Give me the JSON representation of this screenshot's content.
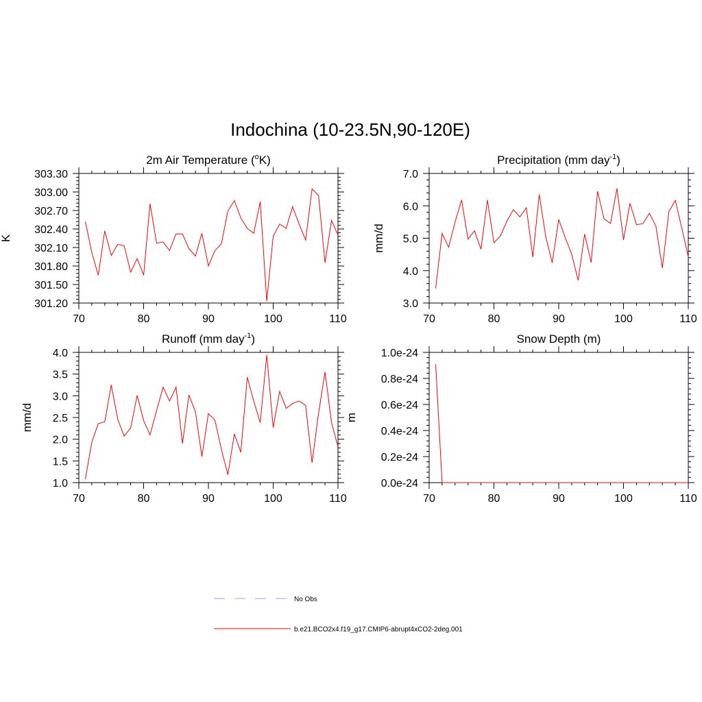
{
  "figure": {
    "title": "Indochina (10-23.5N,90-120E)"
  },
  "legend": {
    "entries": [
      {
        "label": "No Obs",
        "color": "#9999ff",
        "style": "dashed"
      },
      {
        "label": "b.e21.BCO2x4.f19_g17.CMIP6-abrupt4xCO2-2deg.001",
        "color": "#ff0000",
        "style": "solid"
      }
    ]
  },
  "chart_data": [
    {
      "type": "line",
      "title": "2m Air Temperature (°K)",
      "title_base": "2m Air Temperature (",
      "title_sup": "o",
      "title_tail": "K)",
      "ylabel": "K",
      "xlim": [
        70,
        110
      ],
      "ylim": [
        301.2,
        303.3
      ],
      "xticks": [
        70,
        80,
        90,
        100,
        110
      ],
      "yticks": [
        301.2,
        301.5,
        301.8,
        302.1,
        302.4,
        302.7,
        303.0,
        303.3
      ],
      "ytick_labels": [
        "301.20",
        "301.50",
        "301.80",
        "302.10",
        "302.40",
        "302.70",
        "303.00",
        "303.30"
      ],
      "series": [
        {
          "color": "#ff0000",
          "x": [
            71,
            72,
            73,
            74,
            75,
            76,
            77,
            78,
            79,
            80,
            81,
            82,
            83,
            84,
            85,
            86,
            87,
            88,
            89,
            90,
            91,
            92,
            93,
            94,
            95,
            96,
            97,
            98,
            99,
            100,
            101,
            102,
            103,
            104,
            105,
            106,
            107,
            108,
            109,
            110
          ],
          "y": [
            302.52,
            302.02,
            301.65,
            302.37,
            301.97,
            302.15,
            302.13,
            301.7,
            301.92,
            301.65,
            302.81,
            302.17,
            302.19,
            302.05,
            302.32,
            302.32,
            302.08,
            301.96,
            302.33,
            301.8,
            302.05,
            302.16,
            302.69,
            302.86,
            302.58,
            302.41,
            302.33,
            302.84,
            301.23,
            302.28,
            302.48,
            302.41,
            302.76,
            302.48,
            302.22,
            303.05,
            302.94,
            301.85,
            302.54,
            302.3
          ]
        }
      ]
    },
    {
      "type": "line",
      "title": "Precipitation (mm day-1)",
      "title_base": "Precipitation (mm day",
      "title_sup": "-1",
      "title_tail": ")",
      "ylabel": "mm/d",
      "xlim": [
        70,
        110
      ],
      "ylim": [
        3.0,
        7.0
      ],
      "xticks": [
        70,
        80,
        90,
        100,
        110
      ],
      "yticks": [
        3.0,
        4.0,
        5.0,
        6.0,
        7.0
      ],
      "ytick_labels": [
        "3.0",
        "4.0",
        "5.0",
        "6.0",
        "7.0"
      ],
      "series": [
        {
          "color": "#ff0000",
          "x": [
            71,
            72,
            73,
            74,
            75,
            76,
            77,
            78,
            79,
            80,
            81,
            82,
            83,
            84,
            85,
            86,
            87,
            88,
            89,
            90,
            91,
            92,
            93,
            94,
            95,
            96,
            97,
            98,
            99,
            100,
            101,
            102,
            103,
            104,
            105,
            106,
            107,
            108,
            109,
            110
          ],
          "y": [
            3.45,
            5.15,
            4.72,
            5.5,
            6.18,
            4.97,
            5.23,
            4.66,
            6.18,
            4.86,
            5.07,
            5.53,
            5.88,
            5.66,
            5.94,
            4.42,
            6.35,
            5.05,
            4.24,
            5.58,
            5.02,
            4.51,
            3.7,
            5.13,
            4.25,
            6.45,
            5.6,
            5.46,
            6.54,
            4.95,
            6.08,
            5.42,
            5.45,
            5.77,
            5.37,
            4.08,
            5.82,
            6.17,
            5.32,
            4.42
          ]
        }
      ]
    },
    {
      "type": "line",
      "title": "Runoff (mm day-1)",
      "title_base": "Runoff (mm day",
      "title_sup": "-1",
      "title_tail": ")",
      "ylabel": "mm/d",
      "xlim": [
        70,
        110
      ],
      "ylim": [
        1.0,
        4.0
      ],
      "xticks": [
        70,
        80,
        90,
        100,
        110
      ],
      "yticks": [
        1.0,
        1.5,
        2.0,
        2.5,
        3.0,
        3.5,
        4.0
      ],
      "ytick_labels": [
        "1.0",
        "1.5",
        "2.0",
        "2.5",
        "3.0",
        "3.5",
        "4.0"
      ],
      "series": [
        {
          "color": "#ff0000",
          "x": [
            71,
            72,
            73,
            74,
            75,
            76,
            77,
            78,
            79,
            80,
            81,
            82,
            83,
            84,
            85,
            86,
            87,
            88,
            89,
            90,
            91,
            92,
            93,
            94,
            95,
            96,
            97,
            98,
            99,
            100,
            101,
            102,
            103,
            104,
            105,
            106,
            107,
            108,
            109,
            110
          ],
          "y": [
            1.08,
            1.93,
            2.36,
            2.4,
            3.25,
            2.46,
            2.07,
            2.26,
            3.01,
            2.43,
            2.1,
            2.66,
            3.2,
            2.88,
            3.2,
            1.9,
            3.02,
            2.63,
            1.6,
            2.59,
            2.44,
            1.77,
            1.18,
            2.12,
            1.7,
            3.43,
            2.88,
            2.38,
            3.94,
            2.27,
            3.1,
            2.71,
            2.82,
            2.88,
            2.78,
            1.46,
            2.6,
            3.55,
            2.38,
            1.83
          ]
        }
      ]
    },
    {
      "type": "line",
      "title": "Snow Depth (m)",
      "title_base": "Snow Depth (m)",
      "title_sup": "",
      "title_tail": "",
      "ylabel": "m",
      "xlim": [
        70,
        110
      ],
      "ylim": [
        0.0,
        1.0
      ],
      "xticks": [
        70,
        80,
        90,
        100,
        110
      ],
      "yticks": [
        0.0,
        0.2,
        0.4,
        0.6,
        0.8,
        1.0
      ],
      "ytick_labels": [
        "0.0e-24",
        "0.2e-24",
        "0.4e-24",
        "0.6e-24",
        "0.8e-24",
        "1.0e-24"
      ],
      "series": [
        {
          "color": "#ff0000",
          "x": [
            71,
            72,
            73,
            74,
            75,
            76,
            77,
            78,
            79,
            80,
            81,
            82,
            83,
            84,
            85,
            86,
            87,
            88,
            89,
            90,
            91,
            92,
            93,
            94,
            95,
            96,
            97,
            98,
            99,
            100,
            101,
            102,
            103,
            104,
            105,
            106,
            107,
            108,
            109,
            110
          ],
          "y": [
            0.91,
            0,
            0,
            0,
            0,
            0,
            0,
            0,
            0,
            0,
            0,
            0,
            0,
            0,
            0,
            0,
            0,
            0,
            0,
            0,
            0,
            0,
            0,
            0,
            0,
            0,
            0,
            0,
            0,
            0,
            0,
            0,
            0,
            0,
            0,
            0,
            0,
            0,
            0,
            0
          ]
        }
      ]
    }
  ]
}
